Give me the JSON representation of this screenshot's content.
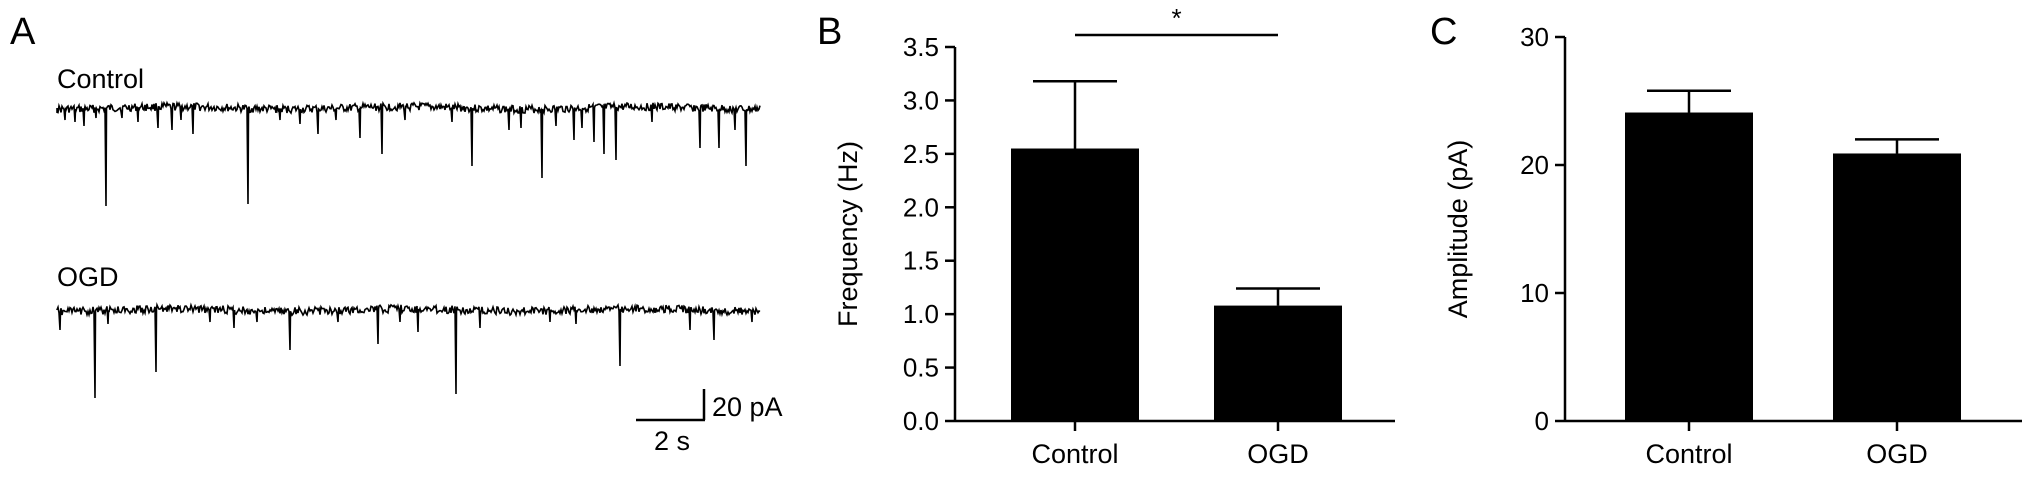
{
  "panels": {
    "A": {
      "letter": "A",
      "trace_labels": [
        "Control",
        "OGD"
      ],
      "scale_bar": {
        "amplitude_label": "20 pA",
        "time_label": "2 s"
      }
    },
    "B": {
      "letter": "B"
    },
    "C": {
      "letter": "C"
    }
  },
  "chart_data": [
    {
      "type": "bar",
      "panel": "B",
      "categories": [
        "Control",
        "OGD"
      ],
      "values": [
        2.55,
        1.08
      ],
      "errors": [
        0.63,
        0.16
      ],
      "ylabel": "Frequency (Hz)",
      "xlabel": "",
      "ylim": [
        0,
        3.5
      ],
      "yticks": [
        0.0,
        0.5,
        1.0,
        1.5,
        2.0,
        2.5,
        3.0,
        3.5
      ],
      "ytick_labels": [
        "0.0",
        "0.5",
        "1.0",
        "1.5",
        "2.0",
        "2.5",
        "3.0",
        "3.5"
      ],
      "significance": {
        "between": [
          "Control",
          "OGD"
        ],
        "label": "*"
      },
      "bar_color": "#000000",
      "grid": false
    },
    {
      "type": "bar",
      "panel": "C",
      "categories": [
        "Control",
        "OGD"
      ],
      "values": [
        24.1,
        20.9
      ],
      "errors": [
        1.7,
        1.1
      ],
      "ylabel": "Amplitude (pA)",
      "xlabel": "",
      "ylim": [
        0,
        30
      ],
      "yticks": [
        0,
        10,
        20,
        30
      ],
      "ytick_labels": [
        "0",
        "10",
        "20",
        "30"
      ],
      "bar_color": "#000000",
      "grid": false
    }
  ]
}
